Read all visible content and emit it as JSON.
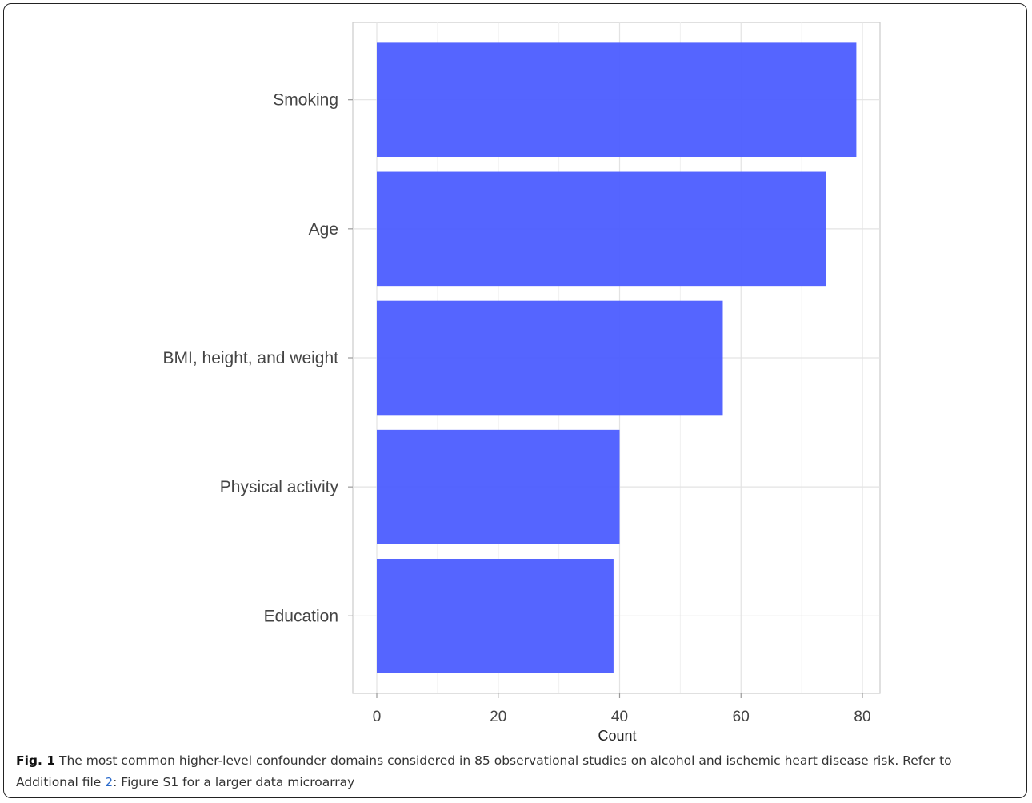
{
  "chart_data": {
    "type": "bar",
    "orientation": "horizontal",
    "categories": [
      "Smoking",
      "Age",
      "BMI, height, and weight",
      "Physical activity",
      "Education"
    ],
    "values": [
      79,
      74,
      57,
      40,
      39
    ],
    "xlabel": "Count",
    "ylabel": "",
    "xlim": [
      0,
      83
    ],
    "xticks": [
      0,
      20,
      40,
      60,
      80
    ],
    "grid": true,
    "bar_color": "#5060ff"
  },
  "caption": {
    "label": "Fig. 1",
    "text_before_ref": " The most common higher-level confounder domains considered in 85 observational studies on alcohol and ischemic heart disease risk. Refer to Additional file ",
    "ref": "2",
    "text_after_ref": ": Figure S1 for a larger data microarray"
  }
}
